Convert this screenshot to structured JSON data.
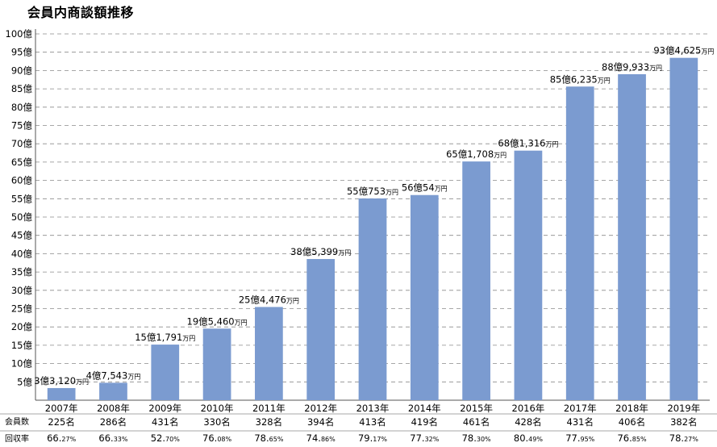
{
  "title": "会員内商談額推移",
  "chart_data": {
    "type": "bar",
    "title": "会員内商談額推移",
    "categories": [
      "2007年",
      "2008年",
      "2009年",
      "2010年",
      "2011年",
      "2012年",
      "2013年",
      "2014年",
      "2015年",
      "2016年",
      "2017年",
      "2018年",
      "2019年"
    ],
    "values": [
      3.312,
      4.7543,
      15.1791,
      19.546,
      25.4476,
      38.5399,
      55.0753,
      56.0054,
      65.1708,
      68.1316,
      85.6235,
      88.9933,
      93.4625
    ],
    "value_labels": [
      {
        "main": "3億3,120",
        "unit": "万円"
      },
      {
        "main": "4億7,543",
        "unit": "万円"
      },
      {
        "main": "15億1,791",
        "unit": "万円"
      },
      {
        "main": "19億5,460",
        "unit": "万円"
      },
      {
        "main": "25億4,476",
        "unit": "万円"
      },
      {
        "main": "38億5,399",
        "unit": "万円"
      },
      {
        "main": "55億753",
        "unit": "万円"
      },
      {
        "main": "56億54",
        "unit": "万円"
      },
      {
        "main": "65億1,708",
        "unit": "万円"
      },
      {
        "main": "68億1,316",
        "unit": "万円"
      },
      {
        "main": "85億6,235",
        "unit": "万円"
      },
      {
        "main": "88億9,933",
        "unit": "万円"
      },
      {
        "main": "93億4,625",
        "unit": "万円"
      }
    ],
    "ylim": [
      0,
      100
    ],
    "yticks": [
      5,
      10,
      15,
      20,
      25,
      30,
      35,
      40,
      45,
      50,
      55,
      60,
      65,
      70,
      75,
      80,
      85,
      90,
      95,
      100
    ],
    "ytick_suffix": "億",
    "grid": true,
    "bar_color": "#7b9bd0",
    "table": {
      "members_label": "会員数",
      "members": [
        "225名",
        "286名",
        "431名",
        "330名",
        "328名",
        "394名",
        "413名",
        "419名",
        "461名",
        "428名",
        "431名",
        "406名",
        "382名"
      ],
      "rate_label": "回収率",
      "rates": [
        {
          "int": "66.",
          "dec": "27%"
        },
        {
          "int": "66.",
          "dec": "33%"
        },
        {
          "int": "52.",
          "dec": "70%"
        },
        {
          "int": "76.",
          "dec": "08%"
        },
        {
          "int": "78.",
          "dec": "65%"
        },
        {
          "int": "74.",
          "dec": "86%"
        },
        {
          "int": "79.",
          "dec": "17%"
        },
        {
          "int": "77.",
          "dec": "32%"
        },
        {
          "int": "78.",
          "dec": "30%"
        },
        {
          "int": "80.",
          "dec": "49%"
        },
        {
          "int": "77.",
          "dec": "95%"
        },
        {
          "int": "76.",
          "dec": "85%"
        },
        {
          "int": "78.",
          "dec": "27%"
        }
      ]
    }
  }
}
